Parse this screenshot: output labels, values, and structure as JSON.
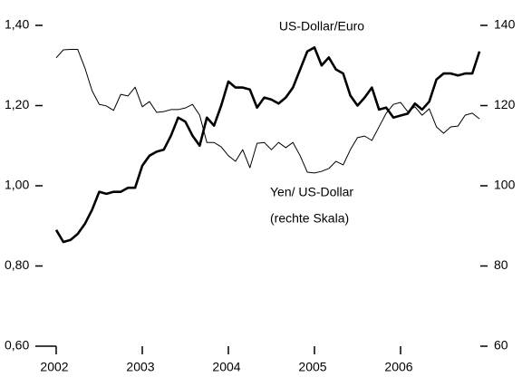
{
  "chart_data": {
    "type": "line",
    "annotations": [
      "US-Dollar/Euro",
      "Yen/ US-Dollar",
      "(rechte Skala)"
    ],
    "x": [
      2002.0,
      2002.0833,
      2002.1667,
      2002.25,
      2002.3333,
      2002.4167,
      2002.5,
      2002.5833,
      2002.6667,
      2002.75,
      2002.8333,
      2002.9167,
      2003.0,
      2003.0833,
      2003.1667,
      2003.25,
      2003.3333,
      2003.4167,
      2003.5,
      2003.5833,
      2003.6667,
      2003.75,
      2003.8333,
      2003.9167,
      2004.0,
      2004.0833,
      2004.1667,
      2004.25,
      2004.3333,
      2004.4167,
      2004.5,
      2004.5833,
      2004.6667,
      2004.75,
      2004.8333,
      2004.9167,
      2005.0,
      2005.0833,
      2005.1667,
      2005.25,
      2005.3333,
      2005.4167,
      2005.5,
      2005.5833,
      2005.6667,
      2005.75,
      2005.8333,
      2005.9167,
      2006.0,
      2006.0833,
      2006.1667,
      2006.25,
      2006.3333,
      2006.4167,
      2006.5,
      2006.5833,
      2006.6667,
      2006.75,
      2006.8333,
      2006.9167
    ],
    "series": [
      {
        "name": "US-Dollar/Euro",
        "color": "#000000",
        "axis": "y",
        "values": [
          0.89,
          0.86,
          0.865,
          0.88,
          0.905,
          0.94,
          0.985,
          0.98,
          0.985,
          0.985,
          0.995,
          0.995,
          1.05,
          1.075,
          1.085,
          1.09,
          1.125,
          1.17,
          1.16,
          1.125,
          1.1,
          1.17,
          1.15,
          1.2,
          1.26,
          1.245,
          1.245,
          1.24,
          1.195,
          1.22,
          1.215,
          1.205,
          1.22,
          1.245,
          1.29,
          1.335,
          1.345,
          1.3,
          1.32,
          1.29,
          1.28,
          1.225,
          1.2,
          1.22,
          1.245,
          1.19,
          1.195,
          1.17,
          1.175,
          1.18,
          1.205,
          1.19,
          1.21,
          1.265,
          1.28,
          1.28,
          1.275,
          1.28,
          1.28,
          1.335
        ]
      },
      {
        "name": "Yen/ US-Dollar",
        "color": "#000000",
        "axis": "y2",
        "values": [
          131.9,
          133.9,
          134,
          134,
          129.4,
          123.7,
          120.3,
          119.9,
          118.8,
          122.8,
          122.4,
          124.6,
          119.7,
          121,
          118.3,
          118.5,
          119,
          119,
          119.4,
          120.3,
          117.6,
          110.8,
          110.8,
          109.7,
          107.5,
          106.1,
          109,
          104.5,
          110.6,
          110.8,
          109,
          110.8,
          109.5,
          110.8,
          107.5,
          103.4,
          103.2,
          103.6,
          104.3,
          106.1,
          105.2,
          109,
          112,
          112.4,
          111.3,
          114.7,
          118.1,
          120.3,
          120.8,
          118.5,
          119.7,
          117.6,
          119.2,
          114.7,
          113.1,
          114.7,
          114.9,
          117.6,
          118.1,
          116.7
        ]
      }
    ],
    "xlim": [
      2002,
      2007
    ],
    "xticks": [
      2002,
      2003,
      2004,
      2005,
      2006
    ],
    "ylim": [
      0.6,
      1.4
    ],
    "yticks": [
      {
        "value": 0.6,
        "label": "0,60"
      },
      {
        "value": 0.8,
        "label": "0,80"
      },
      {
        "value": 1.0,
        "label": "1,00"
      },
      {
        "value": 1.2,
        "label": "1,20"
      },
      {
        "value": 1.4,
        "label": "1,40"
      }
    ],
    "y2lim": [
      60,
      140
    ],
    "y2ticks": [
      60,
      80,
      100,
      120,
      140
    ]
  }
}
